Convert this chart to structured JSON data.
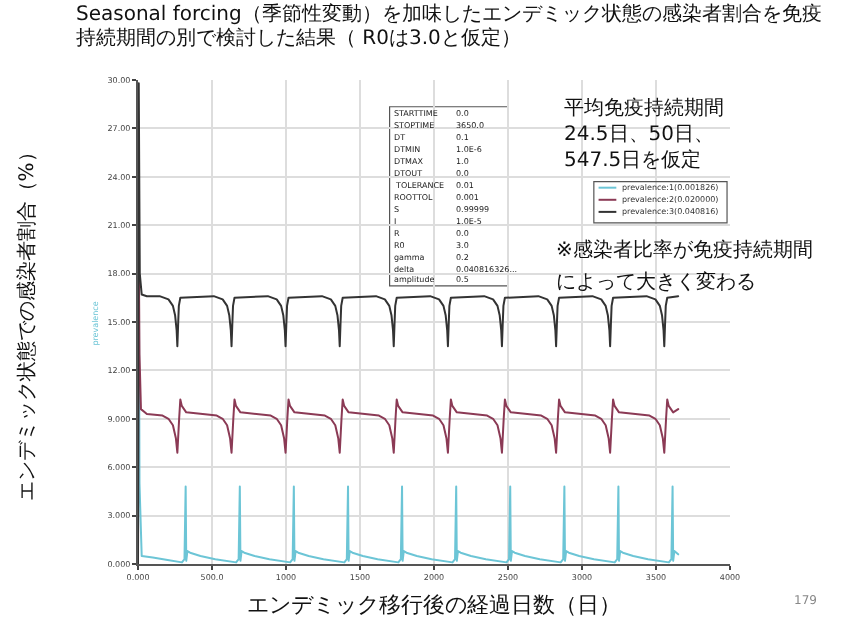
{
  "chart_data": {
    "type": "line",
    "title": "Seasonal forcing（季節性変動）を加味したエンデミック状態の感染者割合を免疫持続期間の別で検討した結果（ R0は3.0と仮定）",
    "xlabel": "エンデミック移行後の経過日数（日）",
    "ylabel": "エンデミック状態での感染者割合（%）",
    "xlim": [
      0,
      4000
    ],
    "ylim": [
      0,
      30
    ],
    "xticks": [
      {
        "value": 0,
        "label": "0.000"
      },
      {
        "value": 500,
        "label": "500.0"
      },
      1000,
      1500,
      2000,
      2500,
      3000,
      3500,
      4000
    ],
    "yticks": [
      {
        "value": 0,
        "label": "0.000"
      },
      {
        "value": 3,
        "label": "3.000"
      },
      {
        "value": 6,
        "label": "6.000"
      },
      {
        "value": 9,
        "label": "9.000"
      },
      {
        "value": 12,
        "label": "12.00"
      },
      {
        "value": 15,
        "label": "15.00"
      },
      {
        "value": 18,
        "label": "18.00"
      },
      {
        "value": 21,
        "label": "21.00"
      },
      {
        "value": 24,
        "label": "24.00"
      },
      {
        "value": 27,
        "label": "27.00"
      },
      {
        "value": 30,
        "label": "30.00"
      }
    ],
    "grid": true,
    "legend": "right",
    "marker": "none",
    "line_style": "solid",
    "series": [
      {
        "name": "prevalence:1(0.001826)",
        "color": "#6cc5d6",
        "x": [
          0,
          3,
          10,
          25,
          100,
          200,
          297,
          314,
          322,
          326,
          334,
          352,
          422,
          522,
          663,
          680,
          688,
          692,
          700,
          718,
          788,
          888,
          1028,
          1045,
          1053,
          1057,
          1065,
          1083,
          1153,
          1253,
          1394,
          1411,
          1419,
          1423,
          1431,
          1449,
          1519,
          1619,
          1759,
          1776,
          1784,
          1788,
          1796,
          1814,
          1884,
          1984,
          2125,
          2142,
          2150,
          2154,
          2162,
          2180,
          2250,
          2350,
          2490,
          2507,
          2515,
          2519,
          2527,
          2545,
          2615,
          2715,
          2856,
          2873,
          2881,
          2885,
          2893,
          2911,
          2981,
          3081,
          3221,
          3238,
          3246,
          3250,
          3258,
          3276,
          3346,
          3446,
          3587,
          3604,
          3612,
          3616,
          3624,
          3650
        ],
        "values": [
          0,
          27,
          5,
          0.5,
          0.4,
          0.25,
          0.1,
          0.3,
          4.8,
          0.2,
          0.8,
          0.7,
          0.5,
          0.3,
          0.1,
          0.3,
          4.8,
          0.2,
          0.8,
          0.7,
          0.5,
          0.3,
          0.1,
          0.3,
          4.8,
          0.2,
          0.8,
          0.7,
          0.5,
          0.3,
          0.1,
          0.3,
          4.8,
          0.2,
          0.8,
          0.7,
          0.5,
          0.3,
          0.1,
          0.3,
          4.8,
          0.2,
          0.8,
          0.7,
          0.5,
          0.3,
          0.1,
          0.3,
          4.8,
          0.2,
          0.8,
          0.7,
          0.5,
          0.3,
          0.1,
          0.3,
          4.8,
          0.2,
          0.8,
          0.7,
          0.5,
          0.3,
          0.1,
          0.3,
          4.8,
          0.2,
          0.8,
          0.7,
          0.5,
          0.3,
          0.1,
          0.3,
          4.8,
          0.2,
          0.8,
          0.7,
          0.5,
          0.3,
          0.1,
          0.3,
          4.8,
          0.2,
          0.8,
          0.6
        ]
      },
      {
        "name": "prevalence:2(0.020000)",
        "color": "#8b3a55",
        "x": [
          0,
          4,
          10,
          20,
          60,
          166,
          206,
          236,
          256,
          266,
          278,
          286,
          296,
          326,
          532,
          572,
          602,
          622,
          632,
          644,
          652,
          662,
          692,
          897,
          937,
          967,
          987,
          997,
          1009,
          1017,
          1027,
          1057,
          1263,
          1303,
          1333,
          1353,
          1363,
          1375,
          1383,
          1393,
          1423,
          1628,
          1668,
          1698,
          1718,
          1728,
          1740,
          1748,
          1758,
          1788,
          1994,
          2034,
          2064,
          2084,
          2094,
          2106,
          2114,
          2124,
          2154,
          2359,
          2399,
          2429,
          2449,
          2459,
          2471,
          2479,
          2489,
          2519,
          2725,
          2765,
          2795,
          2815,
          2825,
          2837,
          2845,
          2855,
          2885,
          3090,
          3130,
          3160,
          3180,
          3190,
          3202,
          3210,
          3220,
          3250,
          3456,
          3496,
          3526,
          3546,
          3556,
          3568,
          3576,
          3586,
          3616,
          3650
        ],
        "values": [
          0,
          21.2,
          13,
          9.6,
          9.3,
          9.2,
          9.0,
          8.6,
          7.8,
          6.9,
          9.0,
          10.2,
          9.8,
          9.4,
          9.2,
          9.0,
          8.6,
          7.8,
          6.9,
          9.0,
          10.2,
          9.8,
          9.4,
          9.2,
          9.0,
          8.6,
          7.8,
          6.9,
          9.0,
          10.2,
          9.8,
          9.4,
          9.2,
          9.0,
          8.6,
          7.8,
          6.9,
          9.0,
          10.2,
          9.8,
          9.4,
          9.2,
          9.0,
          8.6,
          7.8,
          6.9,
          9.0,
          10.2,
          9.8,
          9.4,
          9.2,
          9.0,
          8.6,
          7.8,
          6.9,
          9.0,
          10.2,
          9.8,
          9.4,
          9.2,
          9.0,
          8.6,
          7.8,
          6.9,
          9.0,
          10.2,
          9.8,
          9.4,
          9.2,
          9.0,
          8.6,
          7.8,
          6.9,
          9.0,
          10.2,
          9.8,
          9.4,
          9.2,
          9.0,
          8.6,
          7.8,
          6.9,
          9.0,
          10.2,
          9.8,
          9.4,
          9.2,
          9.0,
          8.6,
          7.8,
          6.9,
          9.0,
          10.2,
          9.8,
          9.4,
          9.6
        ]
      },
      {
        "name": "prevalence:3(0.040816)",
        "color": "#333333",
        "x": [
          0,
          5,
          12,
          25,
          60,
          146,
          206,
          236,
          251,
          261,
          266,
          271,
          276,
          286,
          512,
          572,
          602,
          617,
          627,
          632,
          637,
          642,
          652,
          877,
          937,
          967,
          982,
          992,
          997,
          1002,
          1007,
          1017,
          1243,
          1303,
          1333,
          1348,
          1358,
          1363,
          1368,
          1373,
          1383,
          1608,
          1668,
          1698,
          1713,
          1723,
          1728,
          1733,
          1738,
          1748,
          1974,
          2034,
          2064,
          2079,
          2089,
          2094,
          2099,
          2104,
          2114,
          2339,
          2399,
          2429,
          2444,
          2454,
          2459,
          2464,
          2469,
          2479,
          2705,
          2765,
          2795,
          2810,
          2820,
          2825,
          2830,
          2835,
          2845,
          3070,
          3130,
          3160,
          3175,
          3185,
          3190,
          3195,
          3200,
          3210,
          3436,
          3496,
          3526,
          3541,
          3551,
          3556,
          3561,
          3566,
          3576,
          3650
        ],
        "values": [
          0,
          29.8,
          18,
          16.7,
          16.6,
          16.6,
          16.4,
          16.0,
          15.4,
          14.5,
          13.5,
          14.8,
          16.0,
          16.5,
          16.6,
          16.4,
          16.0,
          15.4,
          14.5,
          13.5,
          14.8,
          16.0,
          16.5,
          16.6,
          16.4,
          16.0,
          15.4,
          14.5,
          13.5,
          14.8,
          16.0,
          16.5,
          16.6,
          16.4,
          16.0,
          15.4,
          14.5,
          13.5,
          14.8,
          16.0,
          16.5,
          16.6,
          16.4,
          16.0,
          15.4,
          14.5,
          13.5,
          14.8,
          16.0,
          16.5,
          16.6,
          16.4,
          16.0,
          15.4,
          14.5,
          13.5,
          14.8,
          16.0,
          16.5,
          16.6,
          16.4,
          16.0,
          15.4,
          14.5,
          13.5,
          14.8,
          16.0,
          16.5,
          16.6,
          16.4,
          16.0,
          15.4,
          14.5,
          13.5,
          14.8,
          16.0,
          16.5,
          16.6,
          16.4,
          16.0,
          15.4,
          14.5,
          13.5,
          14.8,
          16.0,
          16.5,
          16.6,
          16.4,
          16.0,
          15.4,
          14.5,
          13.5,
          14.8,
          16.0,
          16.5,
          16.6
        ]
      }
    ],
    "annotations": [
      "平均免疫持続期間\n24.5日、50日、\n547.5日を仮定",
      "※感染者比率が免疫持続期間",
      "によって大きく変わる",
      "prevalence",
      "179",
      "STARTTIME 0.0",
      "STOPTIME 3650.0",
      "DT 0.1",
      "DTMIN 1.0E-6",
      "DTMAX 1.0",
      "DTOUT 0.0",
      "TOLERANCE 0.01",
      "ROOTTOL 0.001",
      "S 0.99999",
      "I 1.0E-5",
      "R 0.0",
      "R0 3.0",
      "gamma 0.2",
      "delta 0.040816326...",
      "amplitude 0.5"
    ]
  }
}
